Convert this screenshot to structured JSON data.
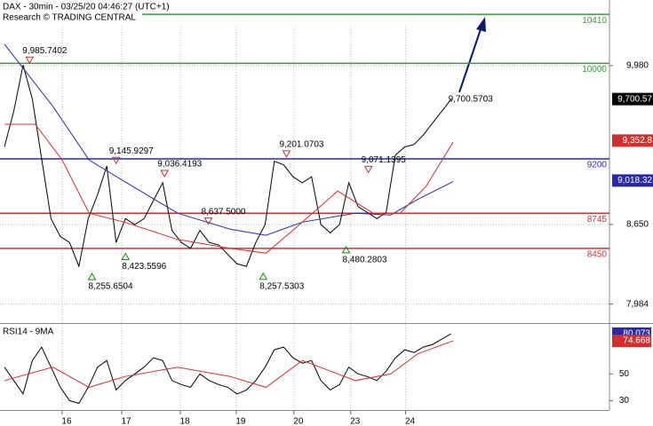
{
  "chart_data": {
    "type": "line",
    "title": "DAX - 30min - 03/25/20 04:46:27 (UTC+1)",
    "subtitle": "Research © TRADING CENTRAL",
    "xlim": [
      0,
      65
    ],
    "xticks": [
      {
        "value": 6.2,
        "label": "16"
      },
      {
        "value": 12.6,
        "label": "17"
      },
      {
        "value": 18.9,
        "label": "18"
      },
      {
        "value": 24.9,
        "label": "19"
      },
      {
        "value": 31.1,
        "label": "20"
      },
      {
        "value": 37.2,
        "label": "23"
      },
      {
        "value": 43.1,
        "label": "24"
      }
    ],
    "ylim": [
      7840,
      10530
    ],
    "yticks": [
      {
        "value": 9980,
        "label": "9,980"
      },
      {
        "value": 8650,
        "label": "8,650"
      },
      {
        "value": 7984,
        "label": "7,984"
      }
    ],
    "grid": true,
    "series": [
      {
        "color": "#000000",
        "values": [
          9300,
          9600,
          9985,
          9700,
          9200,
          8700,
          8550,
          8500,
          8300,
          8700,
          8900,
          9140,
          8500,
          8700,
          8650,
          8700,
          8850,
          9000,
          8600,
          8500,
          8450,
          8600,
          8500,
          8480,
          8400,
          8320,
          8300,
          8500,
          8650,
          9180,
          9150,
          9050,
          9000,
          9050,
          8650,
          8580,
          8650,
          9000,
          8800,
          8750,
          8700,
          8750,
          9230,
          9300,
          9320,
          9400,
          9500,
          9600,
          9700
        ]
      },
      {
        "color": "#2a2aa0",
        "x": [
          0,
          5.2,
          9.1,
          12.9,
          18.6,
          24.3,
          28.1,
          32,
          37.7,
          41.5,
          44.4,
          48.2
        ],
        "values": [
          10160,
          9640,
          9190,
          9010,
          8745,
          8610,
          8560,
          8670,
          8745,
          8730,
          8860,
          9010
        ]
      },
      {
        "color": "#d03030",
        "x": [
          0,
          3.3,
          6.2,
          9.1,
          12.9,
          18.6,
          24.3,
          28.1,
          32,
          35.8,
          39.6,
          42.5,
          45.3,
          48.2
        ],
        "values": [
          9490,
          9490,
          9190,
          8745,
          8670,
          8525,
          8450,
          8410,
          8670,
          8930,
          8745,
          8745,
          8970,
          9340
        ]
      }
    ],
    "levels": [
      {
        "value": 10410,
        "label": "10410",
        "color": "#3a9a3a"
      },
      {
        "value": 10000,
        "label": "10000",
        "color": "#3a9a3a"
      },
      {
        "value": 9200,
        "label": "9200",
        "color": "#2a2aa0"
      },
      {
        "value": 8745,
        "label": "8745",
        "color": "#d03030"
      },
      {
        "value": 8450,
        "label": "8450",
        "color": "#d03030"
      }
    ],
    "price_tags": [
      {
        "value": 9700.57,
        "label": "9,700.57",
        "color": "#000000"
      },
      {
        "value": 9352.8,
        "label": "9,352.8",
        "color": "#d03030"
      },
      {
        "value": 9018.32,
        "label": "9,018.32",
        "color": "#2a2aa0"
      }
    ],
    "annotations": [
      {
        "x": 2.7,
        "value": 9985.7402,
        "label": "9,985.7402",
        "direction": "down"
      },
      {
        "x": 12,
        "value": 9145.9297,
        "label": "9,145.9297",
        "direction": "down"
      },
      {
        "x": 17.2,
        "value": 9036.4193,
        "label": "9,036.4193",
        "direction": "down"
      },
      {
        "x": 21.9,
        "value": 8637.5,
        "label": "8,637.5000",
        "direction": "down"
      },
      {
        "x": 30.3,
        "value": 9201.0703,
        "label": "9,201.0703",
        "direction": "down"
      },
      {
        "x": 39.1,
        "value": 9071.1395,
        "label": "9,071.1395",
        "direction": "down"
      },
      {
        "x": 9.4,
        "value": 8255.6504,
        "label": "8,255.6504",
        "direction": "up"
      },
      {
        "x": 13,
        "value": 8423.5596,
        "label": "8,423.5596",
        "direction": "up"
      },
      {
        "x": 27.8,
        "value": 8257.5303,
        "label": "8,257.5303",
        "direction": "up"
      },
      {
        "x": 36.7,
        "value": 8480.2803,
        "label": "8,480.2803",
        "direction": "up"
      },
      {
        "x": 49.6,
        "value": 9700.5703,
        "label": "9,700.5703"
      }
    ],
    "rsi": {
      "title": "RSI14 - 9MA",
      "ylim": [
        23,
        86
      ],
      "yticks": [
        30,
        50
      ],
      "series": [
        {
          "color": "#000000",
          "values": [
            55,
            45,
            35,
            60,
            70,
            55,
            40,
            30,
            28,
            40,
            55,
            60,
            38,
            45,
            50,
            55,
            62,
            60,
            45,
            42,
            40,
            50,
            45,
            42,
            40,
            35,
            38,
            45,
            55,
            68,
            70,
            62,
            58,
            60,
            45,
            38,
            42,
            55,
            50,
            48,
            45,
            52,
            62,
            68,
            66,
            70,
            72,
            76,
            80
          ]
        },
        {
          "color": "#d03030",
          "x": [
            0,
            5.2,
            9.1,
            12.9,
            18.6,
            24.3,
            28.1,
            32,
            37.7,
            41.5,
            44.4,
            48.2
          ],
          "values": [
            45,
            55,
            40,
            48,
            55,
            48,
            40,
            60,
            45,
            50,
            65,
            74.7
          ]
        }
      ],
      "tags": [
        {
          "value": 80.073,
          "label": "80.073",
          "color": "#2a2aa0"
        },
        {
          "value": 74.668,
          "label": "74.668",
          "color": "#d03030"
        }
      ]
    }
  }
}
